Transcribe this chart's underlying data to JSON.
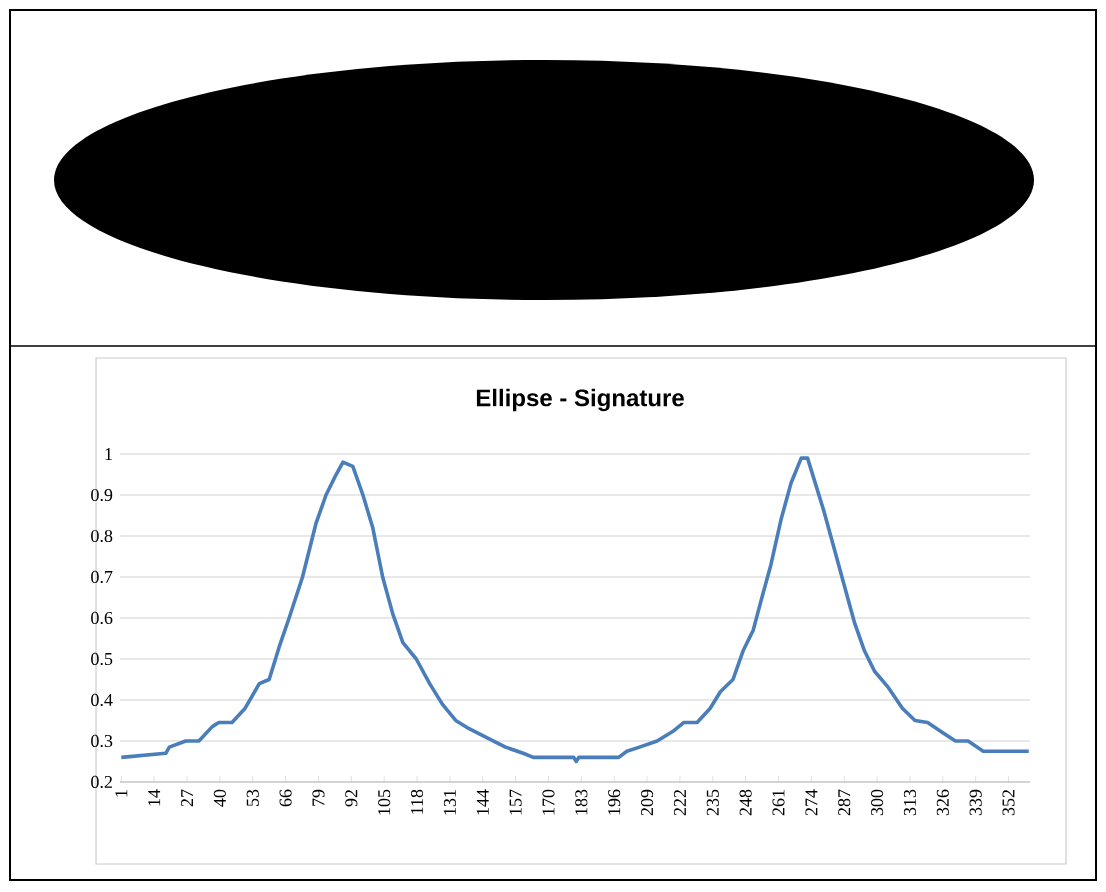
{
  "chart_data": {
    "type": "line",
    "title": "Ellipse - Signature",
    "x": [
      1,
      18.6,
      20,
      26.5,
      31.7,
      37,
      39.6,
      44.8,
      50,
      55.6,
      59.5,
      63.5,
      67.4,
      72.7,
      78,
      82,
      86,
      88.7,
      92.6,
      96.6,
      100.5,
      104.4,
      108.4,
      112.4,
      117.7,
      123,
      128,
      133.3,
      138.6,
      145,
      153,
      160,
      164,
      180,
      181,
      182,
      197.8,
      201,
      206,
      213,
      219.6,
      223.5,
      228.8,
      234,
      238,
      243,
      247,
      251,
      254,
      258,
      262,
      266,
      270,
      272.5,
      275,
      279,
      283,
      287,
      291,
      295,
      299,
      304.5,
      310,
      315,
      320,
      326,
      331,
      336,
      342,
      360
    ],
    "series": [
      {
        "color": "#4a7ebb",
        "values": [
          0.26,
          0.27,
          0.285,
          0.3,
          0.3,
          0.335,
          0.345,
          0.345,
          0.38,
          0.44,
          0.45,
          0.53,
          0.6,
          0.7,
          0.83,
          0.9,
          0.95,
          0.98,
          0.97,
          0.9,
          0.82,
          0.7,
          0.61,
          0.54,
          0.5,
          0.44,
          0.39,
          0.35,
          0.33,
          0.31,
          0.285,
          0.27,
          0.26,
          0.26,
          0.25,
          0.26,
          0.26,
          0.275,
          0.285,
          0.3,
          0.325,
          0.345,
          0.345,
          0.38,
          0.42,
          0.45,
          0.52,
          0.57,
          0.64,
          0.73,
          0.84,
          0.93,
          0.99,
          0.99,
          0.94,
          0.86,
          0.77,
          0.68,
          0.59,
          0.52,
          0.47,
          0.43,
          0.38,
          0.35,
          0.345,
          0.32,
          0.3,
          0.3,
          0.275,
          0.275
        ]
      }
    ],
    "xlim": [
      0.5,
      360.5
    ],
    "xticks": [
      1,
      14,
      27,
      40,
      53,
      66,
      79,
      92,
      105,
      118,
      131,
      144,
      157,
      170,
      183,
      196,
      209,
      222,
      235,
      248,
      261,
      274,
      287,
      300,
      313,
      326,
      339,
      352
    ],
    "ylim": [
      0.2,
      1
    ],
    "yticks": [
      0.2,
      0.3,
      0.4,
      0.5,
      0.6,
      0.7,
      0.8,
      0.9,
      1
    ],
    "grid": "y",
    "marker": "none",
    "line_style": "solid"
  }
}
